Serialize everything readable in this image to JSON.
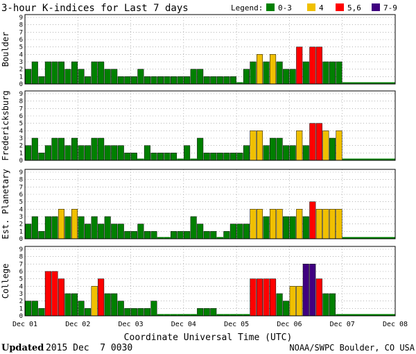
{
  "title": "3-hour K-indices for Last 7 days",
  "legend": {
    "label": "Legend:",
    "items": [
      {
        "label": "0-3",
        "color": "#008000"
      },
      {
        "label": "4",
        "color": "#f0c000"
      },
      {
        "label": "5,6",
        "color": "#ff0000"
      },
      {
        "label": "7-9",
        "color": "#400080"
      }
    ]
  },
  "xlabel": "Coordinate Universal Time (UTC)",
  "updated": {
    "label": "Updated",
    "value": "2015 Dec  7 0030"
  },
  "credit": "NOAA/SWPC Boulder, CO USA",
  "chart_data": {
    "type": "bar",
    "x_ticks": [
      "Dec 01",
      "Dec 02",
      "Dec 03",
      "Dec 04",
      "Dec 05",
      "Dec 06",
      "Dec 07",
      "Dec 08"
    ],
    "y_ticks": [
      "0",
      "1",
      "2",
      "3",
      "4",
      "5",
      "6",
      "7",
      "8",
      "9"
    ],
    "ylim": [
      0,
      9
    ],
    "bins_per_day": 8,
    "panels": [
      {
        "name": "Boulder",
        "values": [
          2,
          3,
          1,
          3,
          3,
          3,
          2,
          3,
          2,
          1,
          3,
          3,
          2,
          2,
          1,
          1,
          1,
          2,
          1,
          1,
          1,
          1,
          1,
          1,
          1,
          2,
          2,
          1,
          1,
          1,
          1,
          1,
          0,
          2,
          3,
          4,
          3,
          4,
          3,
          2,
          2,
          5,
          3,
          5,
          5,
          3,
          3,
          3
        ]
      },
      {
        "name": "Fredericksburg",
        "values": [
          2,
          3,
          1,
          2,
          3,
          3,
          2,
          3,
          2,
          2,
          3,
          3,
          2,
          2,
          2,
          1,
          1,
          0,
          2,
          1,
          1,
          1,
          1,
          0,
          2,
          0,
          3,
          1,
          1,
          1,
          1,
          1,
          1,
          2,
          4,
          4,
          2,
          3,
          3,
          2,
          2,
          4,
          2,
          5,
          5,
          4,
          3,
          4
        ]
      },
      {
        "name": "Est. Planetary",
        "values": [
          2,
          3,
          1,
          3,
          3,
          4,
          3,
          4,
          3,
          2,
          3,
          2,
          3,
          2,
          2,
          1,
          1,
          2,
          1,
          1,
          0,
          0,
          1,
          1,
          1,
          3,
          2,
          1,
          1,
          0,
          1,
          2,
          2,
          2,
          4,
          4,
          3,
          4,
          4,
          3,
          3,
          4,
          3,
          5,
          4,
          4,
          4,
          4
        ]
      },
      {
        "name": "College",
        "values": [
          2,
          2,
          1,
          6,
          6,
          5,
          3,
          3,
          2,
          1,
          4,
          5,
          3,
          3,
          2,
          1,
          1,
          1,
          1,
          2,
          0,
          0,
          0,
          0,
          0,
          0,
          1,
          1,
          1,
          0,
          0,
          0,
          0,
          0,
          5,
          5,
          5,
          5,
          3,
          2,
          4,
          4,
          7,
          7,
          5,
          3,
          3
        ]
      }
    ]
  }
}
